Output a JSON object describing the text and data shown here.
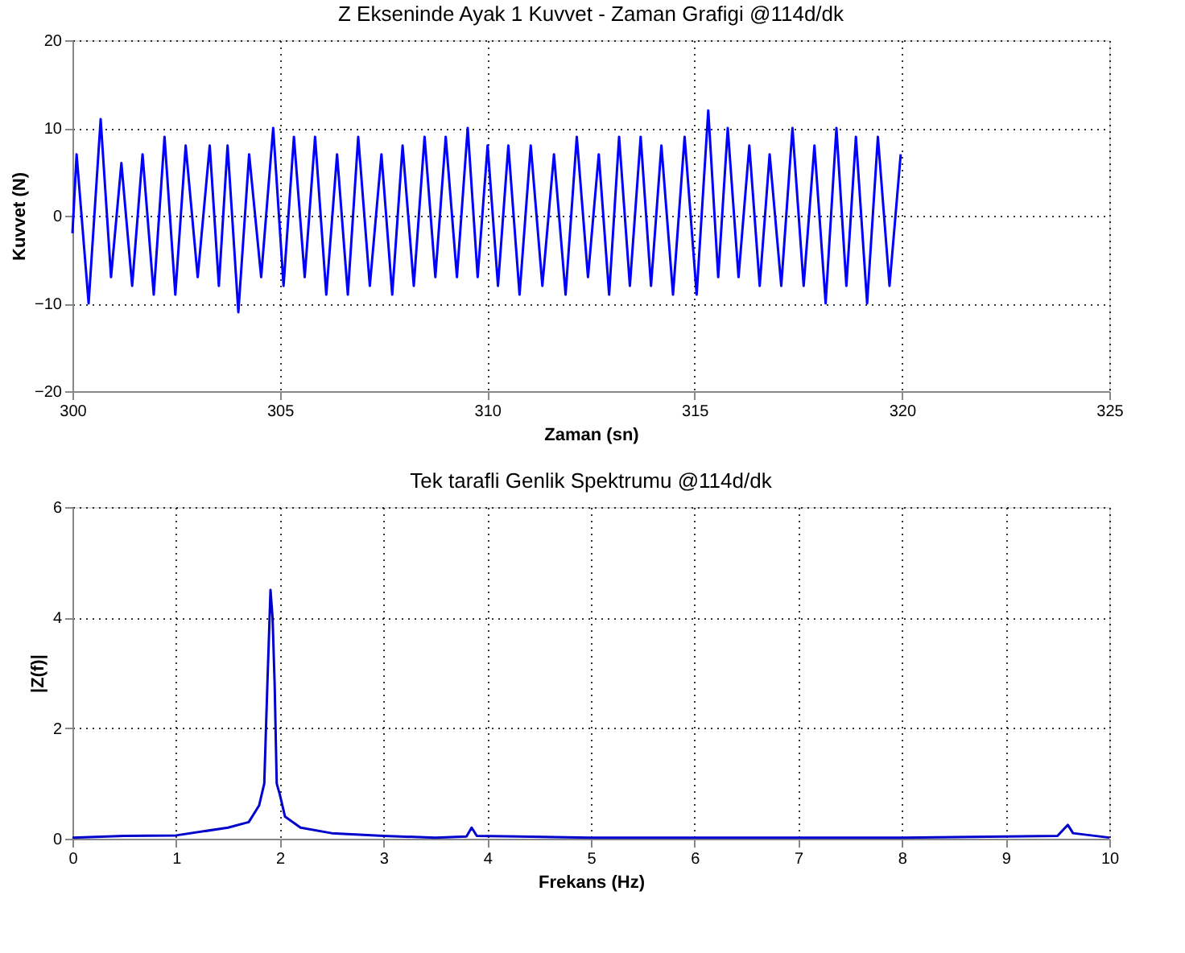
{
  "chart_data": [
    {
      "type": "line",
      "title": "Z Ekseninde Ayak 1 Kuvvet - Zaman Grafigi @114d/dk",
      "xlabel": "Zaman (sn)",
      "ylabel": "Kuvvet (N)",
      "xlim": [
        300,
        325
      ],
      "xticks": [
        300,
        305,
        310,
        315,
        320,
        325
      ],
      "ylim": [
        -20,
        20
      ],
      "yticks": [
        -20,
        -10,
        0,
        10,
        20
      ],
      "grid": true,
      "series": [
        {
          "color": "#0000ff",
          "x": [
            300.0,
            300.1,
            300.39,
            300.68,
            300.93,
            301.18,
            301.44,
            301.69,
            301.96,
            302.22,
            302.48,
            302.73,
            303.02,
            303.31,
            303.53,
            303.74,
            304.0,
            304.26,
            304.55,
            304.84,
            305.09,
            305.34,
            305.6,
            305.85,
            306.12,
            306.38,
            306.64,
            306.89,
            307.17,
            307.45,
            307.71,
            307.96,
            308.23,
            308.49,
            308.75,
            309.0,
            309.27,
            309.53,
            309.77,
            310.01,
            310.26,
            310.51,
            310.78,
            311.05,
            311.33,
            311.61,
            311.89,
            312.16,
            312.43,
            312.69,
            312.94,
            313.18,
            313.44,
            313.7,
            313.95,
            314.2,
            314.48,
            314.76,
            315.05,
            315.33,
            315.57,
            315.8,
            316.06,
            316.32,
            316.57,
            316.81,
            317.09,
            317.36,
            317.63,
            317.89,
            318.16,
            318.42,
            318.66,
            318.89,
            319.16,
            319.42,
            319.7,
            319.97
          ],
          "values": [
            -2,
            7,
            -10,
            11,
            -7,
            6,
            -8,
            7,
            -9,
            9,
            -9,
            8,
            -7,
            8,
            -8,
            8,
            -11,
            7,
            -7,
            10,
            -8,
            9,
            -7,
            9,
            -9,
            7,
            -9,
            9,
            -8,
            7,
            -9,
            8,
            -8,
            9,
            -7,
            9,
            -7,
            10,
            -7,
            8,
            -8,
            8,
            -9,
            8,
            -8,
            7,
            -9,
            9,
            -7,
            7,
            -9,
            9,
            -8,
            9,
            -8,
            8,
            -9,
            9,
            -9,
            12,
            -7,
            10,
            -7,
            8,
            -8,
            7,
            -8,
            10,
            -8,
            8,
            -10,
            10,
            -8,
            9,
            -10,
            9,
            -8,
            7
          ]
        }
      ]
    },
    {
      "type": "line",
      "title": "Tek tarafli Genlik Spektrumu @114d/dk",
      "xlabel": "Frekans (Hz)",
      "ylabel": "|Z(f)|",
      "xlim": [
        0,
        10
      ],
      "xticks": [
        0,
        1,
        2,
        3,
        4,
        5,
        6,
        7,
        8,
        9,
        10
      ],
      "ylim": [
        0,
        6
      ],
      "yticks": [
        0,
        2,
        4,
        6
      ],
      "grid": true,
      "series": [
        {
          "color": "#0000cc",
          "x": [
            0,
            0.5,
            1,
            1.5,
            1.7,
            1.8,
            1.85,
            1.88,
            1.91,
            1.93,
            1.95,
            1.97,
            2.0,
            2.05,
            2.2,
            2.5,
            3,
            3.5,
            3.8,
            3.85,
            3.9,
            4.3,
            5,
            8,
            9.5,
            9.6,
            9.65,
            10
          ],
          "values": [
            0.02,
            0.05,
            0.06,
            0.2,
            0.3,
            0.6,
            1.0,
            2.8,
            4.5,
            4.0,
            2.8,
            1.0,
            0.8,
            0.4,
            0.2,
            0.1,
            0.05,
            0.02,
            0.04,
            0.2,
            0.05,
            0.04,
            0.02,
            0.02,
            0.05,
            0.25,
            0.1,
            0.02
          ]
        }
      ]
    }
  ]
}
